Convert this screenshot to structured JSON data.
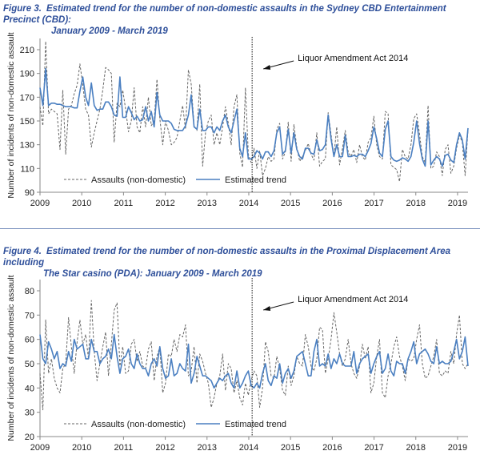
{
  "figures": [
    {
      "number": "Figure 3.",
      "title_line1": "Estimated trend for the number of non-domestic assaults in the Sydney CBD Entertainment Precinct (CBD):",
      "title_line2": "January 2009 - March 2019"
    },
    {
      "number": "Figure 4.",
      "title_line1": "Estimated trend for the number of non-domestic assaults in the Proximal Displacement Area including",
      "title_line2": "The Star casino (PDA): January 2009 - March 2019"
    }
  ],
  "chart_data": [
    {
      "type": "line",
      "ylabel": "Number of incidents of non-domestic assault",
      "xlabel": "",
      "x_ticks": [
        "2009",
        "2010",
        "2011",
        "2012",
        "2013",
        "2014",
        "2015",
        "2016",
        "2017",
        "2018",
        "2019"
      ],
      "y_ticks": [
        "90",
        "110",
        "130",
        "150",
        "170",
        "190",
        "210"
      ],
      "xlim": [
        2009,
        2019.25
      ],
      "ylim": [
        90,
        220
      ],
      "grid": false,
      "legend": "bottom-left",
      "annotation": {
        "label": "Liquor Amendment Act 2014",
        "x": 2014.08,
        "line_style": "dotted-vertical"
      },
      "series": [
        {
          "name": "Assaults (non-domestic)",
          "style": "dashed",
          "color": "#666666",
          "values": [
            162,
            146,
            217,
            156,
            160,
            158,
            156,
            126,
            176,
            122,
            160,
            163,
            173,
            180,
            198,
            180,
            160,
            155,
            128,
            140,
            150,
            160,
            176,
            195,
            193,
            190,
            132,
            165,
            162,
            176,
            160,
            141,
            150,
            178,
            145,
            140,
            162,
            145,
            170,
            146,
            150,
            185,
            152,
            130,
            150,
            142,
            130,
            132,
            136,
            150,
            163,
            143,
            193,
            181,
            146,
            142,
            181,
            112,
            140,
            150,
            155,
            130,
            140,
            130,
            145,
            162,
            148,
            130,
            162,
            172,
            123,
            111,
            178,
            122,
            115,
            127,
            110,
            125,
            104,
            110,
            120,
            116,
            118,
            143,
            148,
            118,
            124,
            149,
            116,
            147,
            128,
            116,
            120,
            125,
            131,
            122,
            117,
            140,
            112,
            116,
            118,
            157,
            139,
            120,
            145,
            113,
            127,
            142,
            124,
            120,
            126,
            115,
            130,
            120,
            117,
            132,
            136,
            154,
            130,
            120,
            118,
            158,
            156,
            113,
            111,
            109,
            99,
            126,
            120,
            118,
            130,
            152,
            156,
            139,
            120,
            115,
            163,
            110,
            112,
            124,
            120,
            104,
            126,
            130,
            106,
            112,
            127,
            138,
            132,
            104,
            143
          ]
        },
        {
          "name": "Estimated trend",
          "style": "solid",
          "color": "#4a7fc1",
          "values": [
            178,
            163,
            194,
            163,
            165,
            165,
            164,
            164,
            163,
            162,
            162,
            162,
            161,
            161,
            175,
            187,
            170,
            163,
            182,
            163,
            159,
            160,
            160,
            166,
            166,
            162,
            155,
            154,
            187,
            153,
            153,
            162,
            157,
            151,
            154,
            150,
            151,
            162,
            150,
            158,
            145,
            174,
            155,
            150,
            150,
            150,
            148,
            143,
            142,
            142,
            142,
            146,
            155,
            172,
            145,
            143,
            160,
            142,
            142,
            145,
            145,
            140,
            145,
            142,
            150,
            155,
            145,
            140,
            150,
            160,
            127,
            120,
            140,
            118,
            118,
            120,
            125,
            123,
            118,
            124,
            124,
            120,
            125,
            140,
            145,
            122,
            125,
            143,
            123,
            140,
            126,
            120,
            118,
            127,
            127,
            123,
            122,
            134,
            125,
            126,
            130,
            155,
            135,
            120,
            130,
            120,
            120,
            138,
            120,
            120,
            121,
            120,
            122,
            122,
            120,
            125,
            131,
            145,
            135,
            123,
            120,
            143,
            150,
            120,
            117,
            116,
            117,
            119,
            118,
            116,
            120,
            132,
            150,
            131,
            118,
            112,
            150,
            113,
            117,
            120,
            118,
            112,
            121,
            122,
            117,
            115,
            130,
            140,
            134,
            118,
            144
          ]
        }
      ]
    },
    {
      "type": "line",
      "ylabel": "Number of incidents of non-domestic assault",
      "xlabel": "",
      "x_ticks": [
        "2009",
        "2010",
        "2011",
        "2012",
        "2013",
        "2014",
        "2015",
        "2016",
        "2017",
        "2018",
        "2019"
      ],
      "y_ticks": [
        "20",
        "30",
        "40",
        "50",
        "60",
        "70",
        "80"
      ],
      "xlim": [
        2009,
        2019.25
      ],
      "ylim": [
        20,
        80
      ],
      "grid": false,
      "legend": "bottom-left",
      "annotation": {
        "label": "Liquor Amendment Act 2014",
        "x": 2014.08,
        "line_style": "dotted-vertical"
      },
      "series": [
        {
          "name": "Assaults (non-domestic)",
          "style": "dashed",
          "color": "#666666",
          "values": [
            46,
            31,
            68,
            46,
            52,
            44,
            40,
            38,
            48,
            50,
            69,
            57,
            46,
            59,
            68,
            58,
            62,
            52,
            76,
            55,
            43,
            50,
            57,
            63,
            45,
            58,
            72,
            75,
            49,
            57,
            46,
            47,
            58,
            60,
            51,
            55,
            49,
            48,
            56,
            59,
            43,
            53,
            57,
            38,
            42,
            54,
            53,
            60,
            55,
            62,
            61,
            66,
            45,
            47,
            57,
            42,
            54,
            51,
            46,
            42,
            32,
            36,
            42,
            45,
            54,
            39,
            50,
            48,
            38,
            43,
            36,
            33,
            42,
            37,
            43,
            47,
            45,
            32,
            40,
            59,
            55,
            45,
            44,
            53,
            48,
            39,
            37,
            49,
            41,
            45,
            53,
            50,
            49,
            62,
            57,
            49,
            47,
            52,
            65,
            64,
            46,
            52,
            60,
            71,
            63,
            54,
            49,
            52,
            60,
            50,
            46,
            44,
            49,
            58,
            52,
            57,
            38,
            42,
            53,
            60,
            38,
            36,
            45,
            50,
            57,
            61,
            53,
            49,
            43,
            52,
            51,
            52,
            60,
            66,
            50,
            44,
            45,
            49,
            53,
            60,
            46,
            45,
            47,
            46,
            55,
            50,
            62,
            70,
            50,
            48,
            50
          ]
        },
        {
          "name": "Estimated trend",
          "style": "solid",
          "color": "#4a7fc1",
          "values": [
            62,
            52,
            50,
            59,
            56,
            52,
            55,
            48,
            50,
            49,
            55,
            51,
            60,
            56,
            57,
            58,
            52,
            52,
            60,
            55,
            55,
            50,
            52,
            53,
            56,
            52,
            62,
            53,
            46,
            52,
            53,
            56,
            50,
            48,
            54,
            50,
            48,
            48,
            45,
            50,
            52,
            49,
            57,
            48,
            44,
            45,
            52,
            45,
            46,
            50,
            48,
            47,
            58,
            42,
            46,
            53,
            49,
            45,
            45,
            44,
            43,
            40,
            42,
            44,
            43,
            45,
            46,
            42,
            40,
            47,
            40,
            42,
            45,
            47,
            41,
            40,
            42,
            40,
            46,
            50,
            43,
            41,
            45,
            44,
            50,
            42,
            46,
            48,
            44,
            47,
            53,
            54,
            55,
            50,
            45,
            45,
            55,
            60,
            49,
            50,
            49,
            54,
            48,
            52,
            50,
            54,
            50,
            49,
            49,
            49,
            55,
            46,
            50,
            52,
            53,
            54,
            46,
            50,
            53,
            55,
            46,
            48,
            54,
            47,
            45,
            51,
            50,
            50,
            46,
            52,
            55,
            59,
            50,
            54,
            55,
            56,
            54,
            51,
            50,
            57,
            50,
            51,
            50,
            50,
            51,
            55,
            60,
            52,
            55,
            61,
            49
          ]
        }
      ]
    }
  ]
}
